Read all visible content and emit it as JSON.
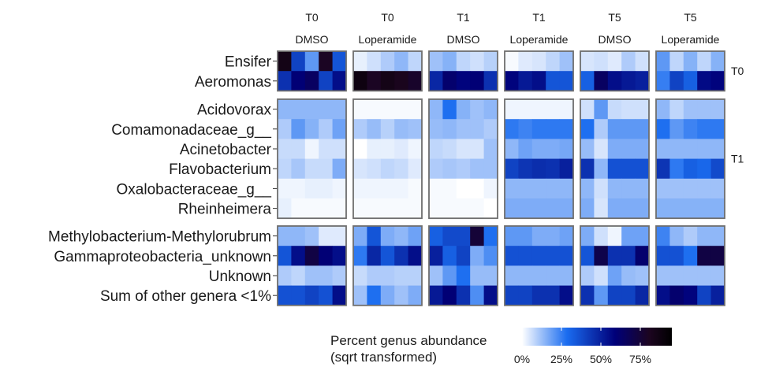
{
  "chart_data": {
    "type": "heatmap",
    "legend": {
      "title_line1": "Percent genus abundance",
      "title_line2": "(sqrt transformed)",
      "ticks": [
        {
          "value": 0,
          "label": "0%"
        },
        {
          "value": 25,
          "label": "25%"
        },
        {
          "value": 50,
          "label": "50%"
        },
        {
          "value": 75,
          "label": "75%"
        }
      ],
      "range": [
        0,
        95
      ],
      "colors": [
        "#ffffff",
        "#1a6cf0",
        "#00007a",
        "#1c0520",
        "#000000"
      ],
      "color_stops": [
        0,
        0.3,
        0.62,
        0.85,
        1
      ]
    },
    "columns": [
      {
        "time": "T0",
        "treatment": "DMSO"
      },
      {
        "time": "T0",
        "treatment": "Loperamide"
      },
      {
        "time": "T1",
        "treatment": "DMSO"
      },
      {
        "time": "T1",
        "treatment": "Loperamide"
      },
      {
        "time": "T5",
        "treatment": "DMSO"
      },
      {
        "time": "T5",
        "treatment": "Loperamide"
      }
    ],
    "row_groups": [
      {
        "strip": "T0",
        "rows": [
          "Ensifer",
          "Aeromonas"
        ]
      },
      {
        "strip": "T1",
        "rows": [
          "Acidovorax",
          "Comamonadaceae_g__",
          "Acinetobacter",
          "Flavobacterium",
          "Oxalobacteraceae_g__",
          "Rheinheimera"
        ]
      },
      {
        "strip": "",
        "rows": [
          "Methylobacterium-Methylorubrum",
          "Gammaproteobacteria_unknown",
          "Unknown",
          "Sum of other genera <1%"
        ]
      }
    ],
    "values": [
      [
        [
          [
            85,
            40,
            20,
            80,
            35
          ],
          [
            45,
            60,
            65,
            40,
            55
          ]
        ],
        [
          [
            3,
            6,
            10,
            14,
            8
          ],
          [
            88,
            80,
            85,
            82,
            78
          ]
        ],
        [
          [
            12,
            15,
            8,
            6,
            9
          ],
          [
            48,
            62,
            58,
            60,
            45
          ]
        ],
        [
          [
            1,
            4,
            5,
            8,
            12
          ],
          [
            58,
            52,
            55,
            35,
            35
          ]
        ],
        [
          [
            5,
            6,
            4,
            10,
            6
          ],
          [
            32,
            65,
            55,
            52,
            50
          ]
        ],
        [
          [
            20,
            8,
            15,
            8,
            15
          ],
          [
            25,
            40,
            32,
            56,
            58
          ]
        ]
      ],
      [
        [
          [
            14,
            14,
            14,
            14,
            14
          ],
          [
            10,
            20,
            15,
            10,
            18
          ],
          [
            7,
            7,
            2,
            6,
            6
          ],
          [
            8,
            11,
            7,
            7,
            16
          ],
          [
            2,
            2,
            3,
            3,
            2
          ],
          [
            3,
            1,
            1,
            1,
            1
          ]
        ],
        [
          [
            1,
            1,
            1,
            1,
            1
          ],
          [
            10,
            13,
            9,
            13,
            12
          ],
          [
            0,
            3,
            3,
            4,
            2
          ],
          [
            5,
            6,
            8,
            7,
            4
          ],
          [
            2,
            2,
            2,
            2,
            1
          ],
          [
            1,
            1,
            1,
            1,
            1
          ]
        ],
        [
          [
            14,
            28,
            15,
            12,
            14
          ],
          [
            13,
            14,
            12,
            12,
            10
          ],
          [
            8,
            7,
            5,
            5,
            12
          ],
          [
            10,
            11,
            10,
            12,
            12
          ],
          [
            1,
            1,
            0,
            0,
            2
          ],
          [
            1,
            1,
            1,
            1,
            0
          ]
        ],
        [
          [
            2,
            2,
            2,
            2,
            2
          ],
          [
            26,
            24,
            26,
            26,
            26
          ],
          [
            14,
            18,
            16,
            16,
            17
          ],
          [
            40,
            44,
            46,
            45,
            50
          ],
          [
            14,
            14,
            14,
            14,
            14
          ],
          [
            16,
            16,
            16,
            16,
            16
          ]
        ],
        [
          [
            6,
            20,
            7,
            6,
            6
          ],
          [
            28,
            10,
            20,
            20,
            20
          ],
          [
            13,
            5,
            16,
            16,
            16
          ],
          [
            45,
            14,
            36,
            36,
            36
          ],
          [
            14,
            6,
            14,
            14,
            14
          ],
          [
            16,
            5,
            16,
            16,
            16
          ]
        ],
        [
          [
            14,
            8,
            12,
            12,
            12
          ],
          [
            28,
            20,
            24,
            26,
            26
          ],
          [
            14,
            14,
            14,
            14,
            14
          ],
          [
            44,
            26,
            32,
            30,
            38
          ],
          [
            12,
            12,
            12,
            12,
            12
          ],
          [
            15,
            15,
            15,
            15,
            15
          ]
        ]
      ],
      [
        [
          [
            14,
            14,
            12,
            4,
            4
          ],
          [
            35,
            55,
            72,
            60,
            55
          ],
          [
            10,
            8,
            12,
            12,
            10
          ],
          [
            36,
            36,
            40,
            36,
            55
          ]
        ],
        [
          [
            16,
            35,
            16,
            14,
            18
          ],
          [
            26,
            48,
            35,
            45,
            55
          ],
          [
            7,
            10,
            10,
            9,
            9
          ],
          [
            12,
            28,
            16,
            12,
            16
          ]
        ],
        [
          [
            32,
            38,
            38,
            75,
            28
          ],
          [
            50,
            32,
            40,
            16,
            22
          ],
          [
            12,
            20,
            28,
            13,
            13
          ],
          [
            52,
            60,
            45,
            22,
            55
          ]
        ],
        [
          [
            20,
            20,
            16,
            16,
            18
          ],
          [
            36,
            36,
            36,
            36,
            36
          ],
          [
            14,
            14,
            14,
            14,
            14
          ],
          [
            40,
            40,
            45,
            45,
            55
          ]
        ],
        [
          [
            16,
            6,
            2,
            18,
            18
          ],
          [
            35,
            70,
            45,
            45,
            62
          ],
          [
            10,
            6,
            18,
            13,
            12
          ],
          [
            45,
            20,
            40,
            40,
            48
          ]
        ],
        [
          [
            24,
            14,
            10,
            14,
            14
          ],
          [
            36,
            36,
            28,
            72,
            72
          ],
          [
            12,
            12,
            12,
            12,
            12
          ],
          [
            55,
            62,
            58,
            40,
            50
          ]
        ]
      ]
    ]
  }
}
